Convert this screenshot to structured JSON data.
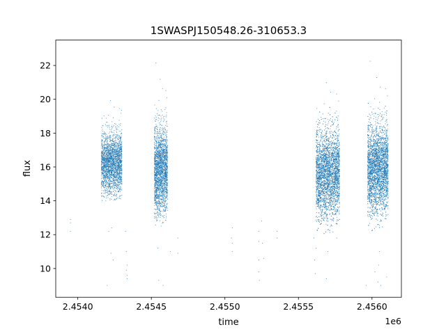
{
  "chart_data": {
    "type": "scatter",
    "title": "1SWASPJ150548.26-310653.3",
    "xlabel": "time",
    "ylabel": "flux",
    "x_offset_label": "1e6",
    "x_scale": 1000000,
    "xlim": [
      2453850,
      2456200
    ],
    "ylim": [
      8.3,
      23.5
    ],
    "x_ticks": [
      2454000,
      2454500,
      2455000,
      2455500,
      2456000
    ],
    "x_tick_labels": [
      "2.4540",
      "2.4545",
      "2.4550",
      "2.4555",
      "2.4560"
    ],
    "y_ticks": [
      10,
      12,
      14,
      16,
      18,
      20,
      22
    ],
    "y_tick_labels": [
      "10",
      "12",
      "14",
      "16",
      "18",
      "20",
      "22"
    ],
    "grid": false,
    "marker_color": "#1f77b4",
    "clusters": [
      {
        "x_range": [
          2454160,
          2454300
        ],
        "y_center": 16.2,
        "y_spread": 0.9,
        "y_min": 14.0,
        "y_max": 20.3,
        "count": 2400
      },
      {
        "x_range": [
          2454520,
          2454610
        ],
        "y_center": 15.8,
        "y_spread": 1.3,
        "y_min": 12.5,
        "y_max": 22.8,
        "count": 2200
      },
      {
        "x_range": [
          2455620,
          2455780
        ],
        "y_center": 15.6,
        "y_spread": 1.3,
        "y_min": 12.0,
        "y_max": 21.0,
        "count": 3600
      },
      {
        "x_range": [
          2455970,
          2456110
        ],
        "y_center": 15.9,
        "y_spread": 1.3,
        "y_min": 12.2,
        "y_max": 22.7,
        "count": 3400
      }
    ],
    "outliers": [
      {
        "x": 2453950,
        "y": 12.9
      },
      {
        "x": 2453950,
        "y": 12.7
      },
      {
        "x": 2453950,
        "y": 12.2
      },
      {
        "x": 2454200,
        "y": 9.0
      },
      {
        "x": 2454210,
        "y": 12.2
      },
      {
        "x": 2454230,
        "y": 12.4
      },
      {
        "x": 2454240,
        "y": 10.5
      },
      {
        "x": 2454225,
        "y": 10.9
      },
      {
        "x": 2454325,
        "y": 12.2
      },
      {
        "x": 2454330,
        "y": 11.0
      },
      {
        "x": 2454335,
        "y": 10.2
      },
      {
        "x": 2454335,
        "y": 9.6
      },
      {
        "x": 2454335,
        "y": 9.4
      },
      {
        "x": 2454330,
        "y": 9.9
      },
      {
        "x": 2454550,
        "y": 9.3
      },
      {
        "x": 2454580,
        "y": 9.0
      },
      {
        "x": 2454545,
        "y": 11.2
      },
      {
        "x": 2454630,
        "y": 11.0
      },
      {
        "x": 2454680,
        "y": 11.8
      },
      {
        "x": 2454680,
        "y": 10.9
      },
      {
        "x": 2455050,
        "y": 12.4
      },
      {
        "x": 2455050,
        "y": 11.5
      },
      {
        "x": 2455050,
        "y": 11.0
      },
      {
        "x": 2455045,
        "y": 11.8
      },
      {
        "x": 2455230,
        "y": 12.2
      },
      {
        "x": 2455230,
        "y": 11.6
      },
      {
        "x": 2455230,
        "y": 10.5
      },
      {
        "x": 2455230,
        "y": 9.8
      },
      {
        "x": 2455235,
        "y": 9.3
      },
      {
        "x": 2455250,
        "y": 12.8
      },
      {
        "x": 2455255,
        "y": 11.5
      },
      {
        "x": 2455265,
        "y": 10.6
      },
      {
        "x": 2455355,
        "y": 12.2
      },
      {
        "x": 2455355,
        "y": 11.8
      },
      {
        "x": 2455605,
        "y": 11.8
      },
      {
        "x": 2455610,
        "y": 10.5
      },
      {
        "x": 2455615,
        "y": 9.7
      },
      {
        "x": 2455620,
        "y": 11.2
      },
      {
        "x": 2455690,
        "y": 9.4
      },
      {
        "x": 2455700,
        "y": 11.0
      },
      {
        "x": 2455760,
        "y": 11.8
      },
      {
        "x": 2455960,
        "y": 9.0
      },
      {
        "x": 2456020,
        "y": 9.8
      },
      {
        "x": 2456040,
        "y": 9.2
      },
      {
        "x": 2456045,
        "y": 10.2
      },
      {
        "x": 2456060,
        "y": 9.0
      },
      {
        "x": 2456050,
        "y": 11.0
      },
      {
        "x": 2456100,
        "y": 9.5
      }
    ]
  }
}
